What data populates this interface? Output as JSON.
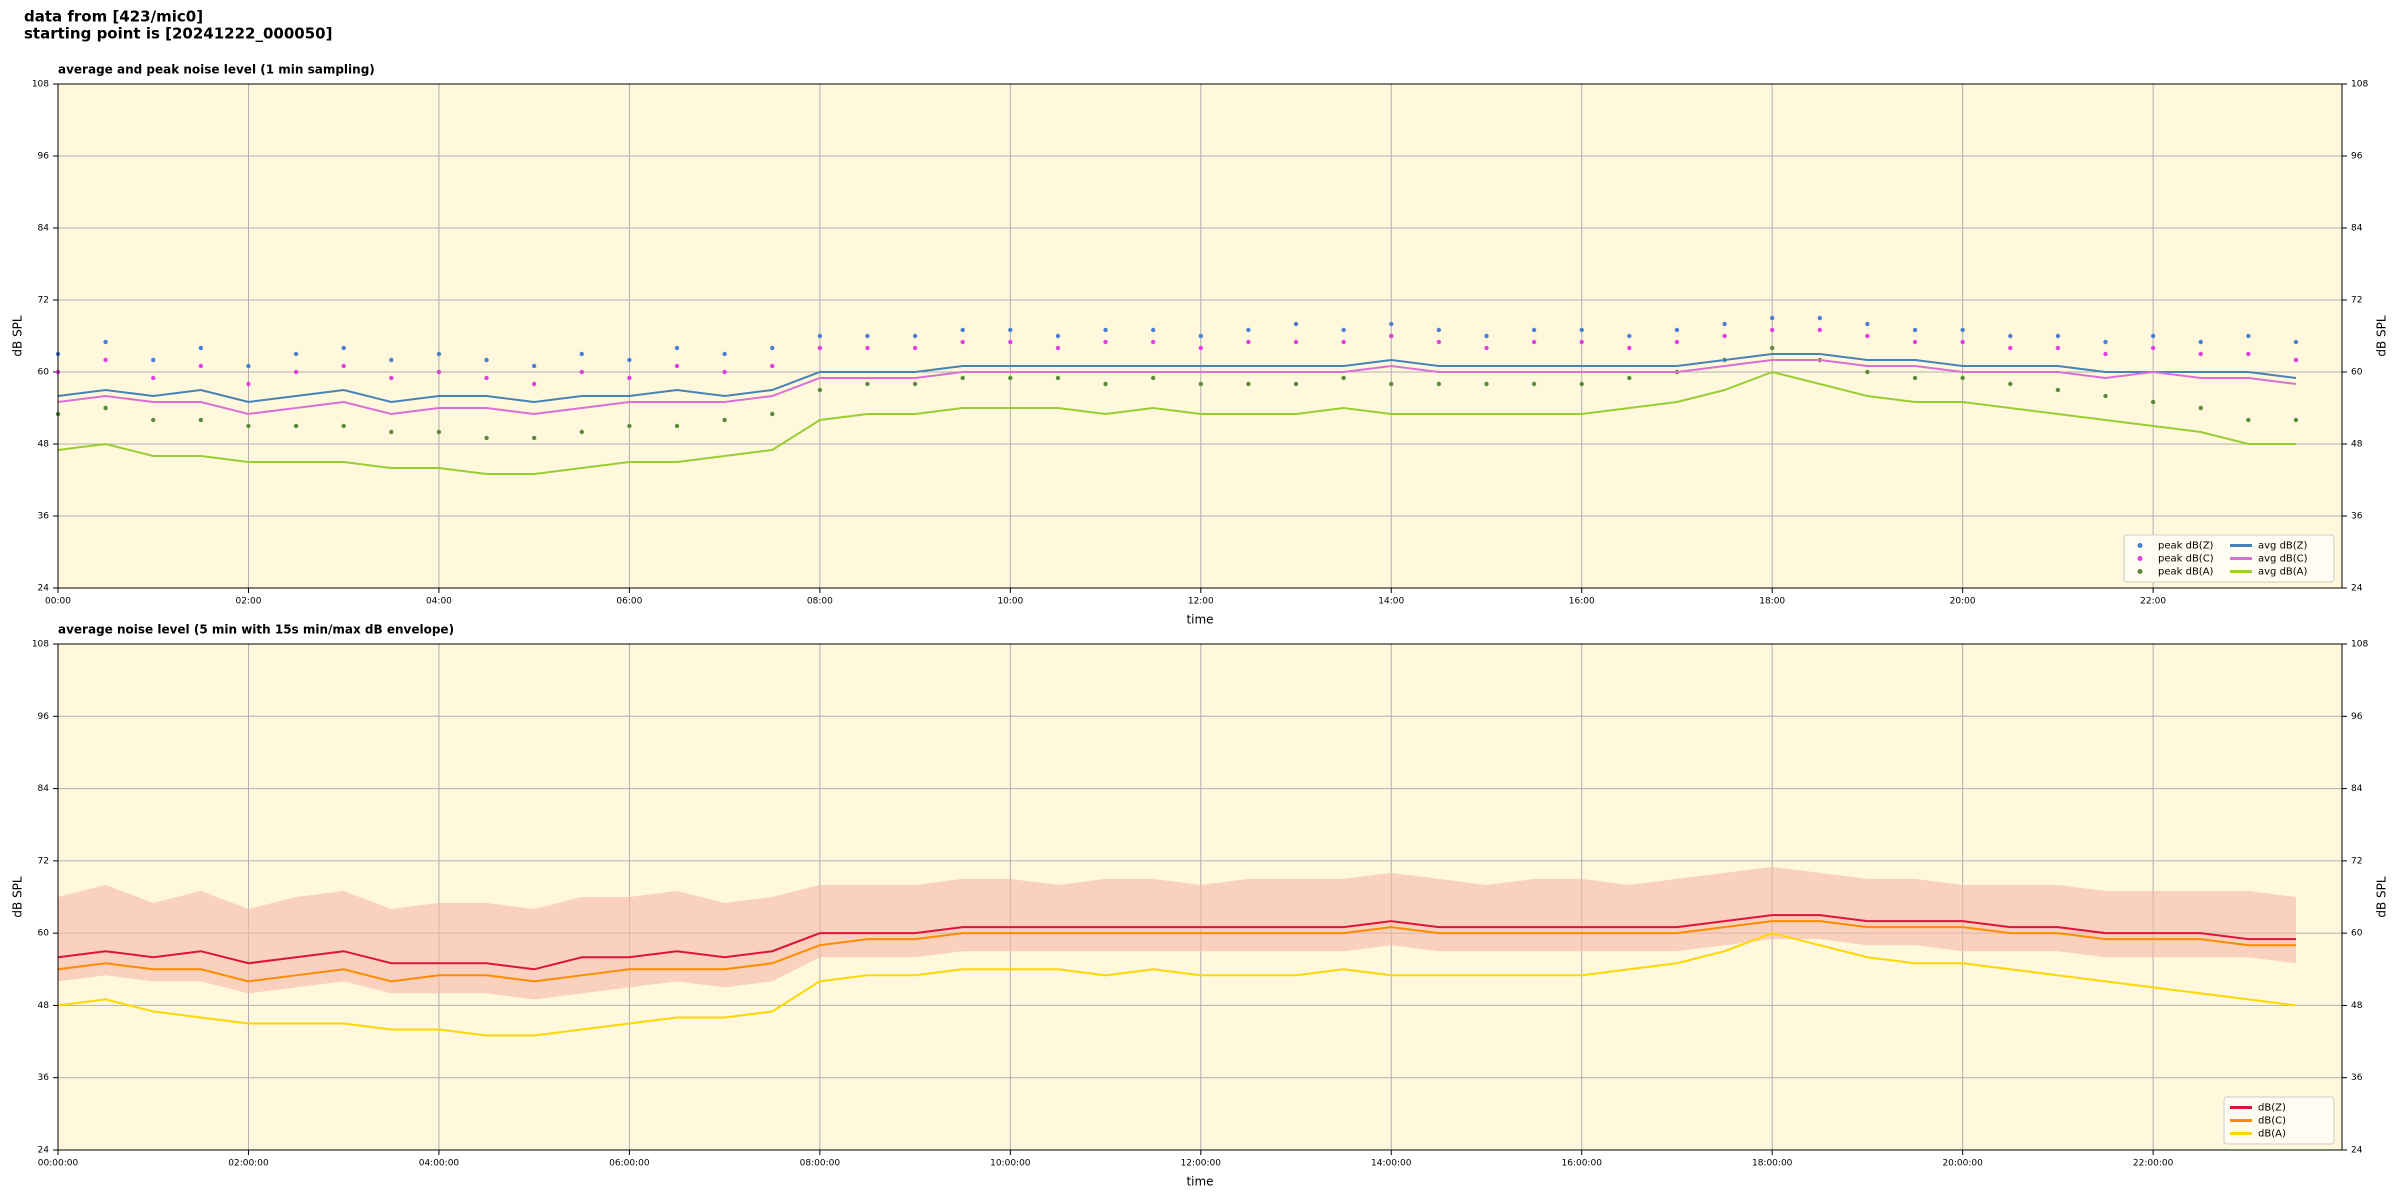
{
  "header": [
    "data from [423/mic0]",
    "starting point is [20241222_000050]"
  ],
  "chart_data": [
    {
      "type": "line",
      "title": "average and peak noise level (1 min sampling)",
      "xlabel": "time",
      "ylabel": "dB SPL",
      "x": [
        "00:00",
        "00:30",
        "01:00",
        "01:30",
        "02:00",
        "02:30",
        "03:00",
        "03:30",
        "04:00",
        "04:30",
        "05:00",
        "05:30",
        "06:00",
        "06:30",
        "07:00",
        "07:30",
        "08:00",
        "08:30",
        "09:00",
        "09:30",
        "10:00",
        "10:30",
        "11:00",
        "11:30",
        "12:00",
        "12:30",
        "13:00",
        "13:30",
        "14:00",
        "14:30",
        "15:00",
        "15:30",
        "16:00",
        "16:30",
        "17:00",
        "17:30",
        "18:00",
        "18:30",
        "19:00",
        "19:30",
        "20:00",
        "20:30",
        "21:00",
        "21:30",
        "22:00",
        "22:30",
        "23:00",
        "23:30"
      ],
      "xlim": [
        "00:00",
        "23:59"
      ],
      "xticks": [
        "00:00",
        "02:00",
        "04:00",
        "06:00",
        "08:00",
        "10:00",
        "12:00",
        "14:00",
        "16:00",
        "18:00",
        "20:00",
        "22:00"
      ],
      "ylim": [
        24,
        108
      ],
      "yticks": [
        24,
        36,
        48,
        60,
        72,
        84,
        96,
        108
      ],
      "grid": true,
      "legend": "lower right",
      "legend_columns": 2,
      "series": [
        {
          "name": "peak dB(Z)",
          "style": "points",
          "color": "#4a7fd4",
          "values": [
            63,
            65,
            62,
            64,
            61,
            63,
            64,
            62,
            63,
            62,
            61,
            63,
            62,
            64,
            63,
            64,
            66,
            66,
            66,
            67,
            67,
            66,
            67,
            67,
            66,
            67,
            68,
            67,
            68,
            67,
            66,
            67,
            67,
            66,
            67,
            68,
            69,
            69,
            68,
            67,
            67,
            66,
            66,
            65,
            66,
            65,
            66,
            65
          ]
        },
        {
          "name": "peak dB(C)",
          "style": "points",
          "color": "#e040e0",
          "values": [
            60,
            62,
            59,
            61,
            58,
            60,
            61,
            59,
            60,
            59,
            58,
            60,
            59,
            61,
            60,
            61,
            64,
            64,
            64,
            65,
            65,
            64,
            65,
            65,
            64,
            65,
            65,
            65,
            66,
            65,
            64,
            65,
            65,
            64,
            65,
            66,
            67,
            67,
            66,
            65,
            65,
            64,
            64,
            63,
            64,
            63,
            63,
            62
          ]
        },
        {
          "name": "peak dB(A)",
          "style": "points",
          "color": "#5a8a3a",
          "values": [
            53,
            54,
            52,
            52,
            51,
            51,
            51,
            50,
            50,
            49,
            49,
            50,
            51,
            51,
            52,
            53,
            57,
            58,
            58,
            59,
            59,
            59,
            58,
            59,
            58,
            58,
            58,
            59,
            58,
            58,
            58,
            58,
            58,
            59,
            60,
            62,
            64,
            62,
            60,
            59,
            59,
            58,
            57,
            56,
            55,
            54,
            52,
            52
          ]
        },
        {
          "name": "avg dB(Z)",
          "style": "line",
          "color": "#4682b4",
          "values": [
            56,
            57,
            56,
            57,
            55,
            56,
            57,
            55,
            56,
            56,
            55,
            56,
            56,
            57,
            56,
            57,
            60,
            60,
            60,
            61,
            61,
            61,
            61,
            61,
            61,
            61,
            61,
            61,
            62,
            61,
            61,
            61,
            61,
            61,
            61,
            62,
            63,
            63,
            62,
            62,
            61,
            61,
            61,
            60,
            60,
            60,
            60,
            59
          ]
        },
        {
          "name": "avg dB(C)",
          "style": "line",
          "color": "#da70d6",
          "values": [
            55,
            56,
            55,
            55,
            53,
            54,
            55,
            53,
            54,
            54,
            53,
            54,
            55,
            55,
            55,
            56,
            59,
            59,
            59,
            60,
            60,
            60,
            60,
            60,
            60,
            60,
            60,
            60,
            61,
            60,
            60,
            60,
            60,
            60,
            60,
            61,
            62,
            62,
            61,
            61,
            60,
            60,
            60,
            59,
            60,
            59,
            59,
            58
          ]
        },
        {
          "name": "avg dB(A)",
          "style": "line",
          "color": "#9acd32",
          "values": [
            47,
            48,
            46,
            46,
            45,
            45,
            45,
            44,
            44,
            43,
            43,
            44,
            45,
            45,
            46,
            47,
            52,
            53,
            53,
            54,
            54,
            54,
            53,
            54,
            53,
            53,
            53,
            54,
            53,
            53,
            53,
            53,
            53,
            54,
            55,
            57,
            60,
            58,
            56,
            55,
            55,
            54,
            53,
            52,
            51,
            50,
            48,
            48
          ]
        }
      ]
    },
    {
      "type": "line",
      "title": "average noise level (5 min with 15s min/max dB envelope)",
      "xlabel": "time",
      "ylabel": "dB SPL",
      "x": [
        "00:00:00",
        "00:30:00",
        "01:00:00",
        "01:30:00",
        "02:00:00",
        "02:30:00",
        "03:00:00",
        "03:30:00",
        "04:00:00",
        "04:30:00",
        "05:00:00",
        "05:30:00",
        "06:00:00",
        "06:30:00",
        "07:00:00",
        "07:30:00",
        "08:00:00",
        "08:30:00",
        "09:00:00",
        "09:30:00",
        "10:00:00",
        "10:30:00",
        "11:00:00",
        "11:30:00",
        "12:00:00",
        "12:30:00",
        "13:00:00",
        "13:30:00",
        "14:00:00",
        "14:30:00",
        "15:00:00",
        "15:30:00",
        "16:00:00",
        "16:30:00",
        "17:00:00",
        "17:30:00",
        "18:00:00",
        "18:30:00",
        "19:00:00",
        "19:30:00",
        "20:00:00",
        "20:30:00",
        "21:00:00",
        "21:30:00",
        "22:00:00",
        "22:30:00",
        "23:00:00",
        "23:30:00"
      ],
      "xlim": [
        "00:00:00",
        "23:59:00"
      ],
      "xticks": [
        "00:00:00",
        "02:00:00",
        "04:00:00",
        "06:00:00",
        "08:00:00",
        "10:00:00",
        "12:00:00",
        "14:00:00",
        "16:00:00",
        "18:00:00",
        "20:00:00",
        "22:00:00"
      ],
      "ylim": [
        24,
        108
      ],
      "yticks": [
        24,
        36,
        48,
        60,
        72,
        84,
        96,
        108
      ],
      "grid": true,
      "legend": "lower right",
      "legend_columns": 1,
      "band": {
        "color": "#f7b8a8",
        "low": [
          52,
          53,
          52,
          52,
          50,
          51,
          52,
          50,
          50,
          50,
          49,
          50,
          51,
          52,
          51,
          52,
          56,
          56,
          56,
          57,
          57,
          57,
          57,
          57,
          57,
          57,
          57,
          57,
          58,
          57,
          57,
          57,
          57,
          57,
          57,
          58,
          59,
          59,
          58,
          58,
          57,
          57,
          57,
          56,
          56,
          56,
          56,
          55
        ],
        "high": [
          66,
          68,
          65,
          67,
          64,
          66,
          67,
          64,
          65,
          65,
          64,
          66,
          66,
          67,
          65,
          66,
          68,
          68,
          68,
          69,
          69,
          68,
          69,
          69,
          68,
          69,
          69,
          69,
          70,
          69,
          68,
          69,
          69,
          68,
          69,
          70,
          71,
          70,
          69,
          69,
          68,
          68,
          68,
          67,
          67,
          67,
          67,
          66
        ]
      },
      "series": [
        {
          "name": "dB(Z)",
          "style": "line",
          "color": "#dc143c",
          "values": [
            56,
            57,
            56,
            57,
            55,
            56,
            57,
            55,
            55,
            55,
            54,
            56,
            56,
            57,
            56,
            57,
            60,
            60,
            60,
            61,
            61,
            61,
            61,
            61,
            61,
            61,
            61,
            61,
            62,
            61,
            61,
            61,
            61,
            61,
            61,
            62,
            63,
            63,
            62,
            62,
            62,
            61,
            61,
            60,
            60,
            60,
            59,
            59
          ]
        },
        {
          "name": "dB(C)",
          "style": "line",
          "color": "#ff8c00",
          "values": [
            54,
            55,
            54,
            54,
            52,
            53,
            54,
            52,
            53,
            53,
            52,
            53,
            54,
            54,
            54,
            55,
            58,
            59,
            59,
            60,
            60,
            60,
            60,
            60,
            60,
            60,
            60,
            60,
            61,
            60,
            60,
            60,
            60,
            60,
            60,
            61,
            62,
            62,
            61,
            61,
            61,
            60,
            60,
            59,
            59,
            59,
            58,
            58
          ]
        },
        {
          "name": "dB(A)",
          "style": "line",
          "color": "#ffd700",
          "values": [
            48,
            49,
            47,
            46,
            45,
            45,
            45,
            44,
            44,
            43,
            43,
            44,
            45,
            46,
            46,
            47,
            52,
            53,
            53,
            54,
            54,
            54,
            53,
            54,
            53,
            53,
            53,
            54,
            53,
            53,
            53,
            53,
            53,
            54,
            55,
            57,
            60,
            58,
            56,
            55,
            55,
            54,
            53,
            52,
            51,
            50,
            49,
            48
          ]
        }
      ]
    }
  ]
}
